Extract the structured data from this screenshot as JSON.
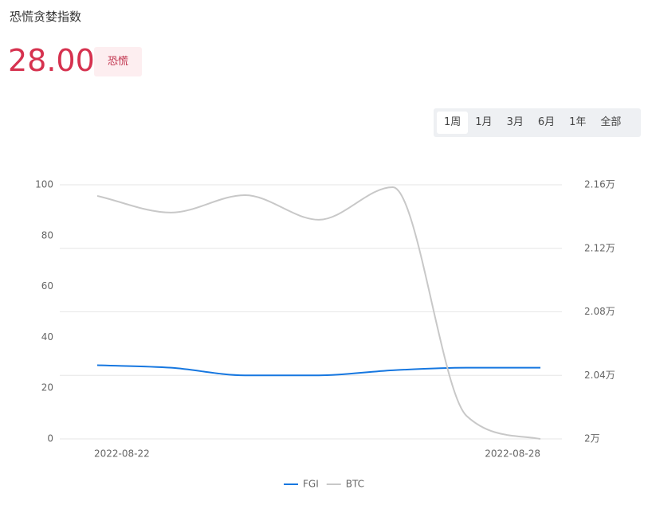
{
  "header": {
    "title": "恐慌贪婪指数",
    "value": "28.00",
    "badge": "恐慌"
  },
  "tabs": [
    "1周",
    "1月",
    "3月",
    "6月",
    "1年",
    "全部"
  ],
  "chart_data": {
    "type": "line",
    "categories": [
      "2022-08-22",
      null,
      null,
      null,
      null,
      null,
      "2022-08-28"
    ],
    "series": [
      {
        "name": "FGI",
        "color": "#1677e0",
        "axis": "y",
        "values": [
          29,
          28,
          25,
          25,
          27,
          28,
          28
        ]
      },
      {
        "name": "BTC",
        "color": "#c8c8c8",
        "axis": "y2",
        "values": [
          21530,
          21425,
          21535,
          21380,
          21585,
          20145,
          20000
        ]
      }
    ],
    "ylim": [
      0,
      100
    ],
    "yticks": [
      0,
      20,
      40,
      60,
      80,
      100
    ],
    "y2lim": [
      20000,
      21600
    ],
    "y2ticks": [
      {
        "value": 20000,
        "label": "2万"
      },
      {
        "value": 20400,
        "label": "2.04万"
      },
      {
        "value": 20800,
        "label": "2.08万"
      },
      {
        "value": 21200,
        "label": "2.12万"
      },
      {
        "value": 21600,
        "label": "2.16万"
      }
    ],
    "grid": true
  }
}
